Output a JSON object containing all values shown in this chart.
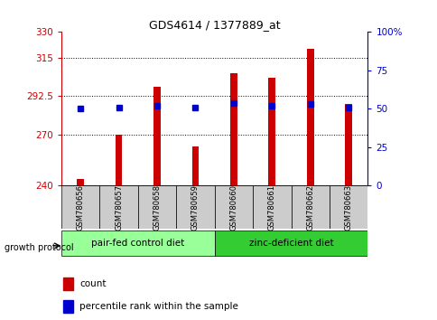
{
  "title": "GDS4614 / 1377889_at",
  "samples": [
    "GSM780656",
    "GSM780657",
    "GSM780658",
    "GSM780659",
    "GSM780660",
    "GSM780661",
    "GSM780662",
    "GSM780663"
  ],
  "count_values": [
    244,
    270,
    298,
    263,
    306,
    303,
    320,
    288
  ],
  "percentile_values": [
    50,
    51,
    52,
    51,
    54,
    52,
    53,
    51
  ],
  "ymin": 240,
  "ymax": 330,
  "yticks": [
    240,
    270,
    292.5,
    315,
    330
  ],
  "ytick_labels": [
    "240",
    "270",
    "292.5",
    "315",
    "330"
  ],
  "y2min": 0,
  "y2max": 100,
  "y2ticks": [
    0,
    25,
    50,
    75,
    100
  ],
  "y2tick_labels": [
    "0",
    "25",
    "50",
    "75",
    "100%"
  ],
  "bar_color": "#CC0000",
  "dot_color": "#0000CC",
  "group1_label": "pair-fed control diet",
  "group2_label": "zinc-deficient diet",
  "group1_color": "#99FF99",
  "group2_color": "#33CC33",
  "group1_indices": [
    0,
    1,
    2,
    3
  ],
  "group2_indices": [
    4,
    5,
    6,
    7
  ],
  "protocol_label": "growth protocol",
  "legend_count": "count",
  "legend_percentile": "percentile rank within the sample",
  "left_tick_color": "#CC0000",
  "right_tick_color": "#0000CC",
  "figsize": [
    4.85,
    3.54
  ],
  "dpi": 100
}
